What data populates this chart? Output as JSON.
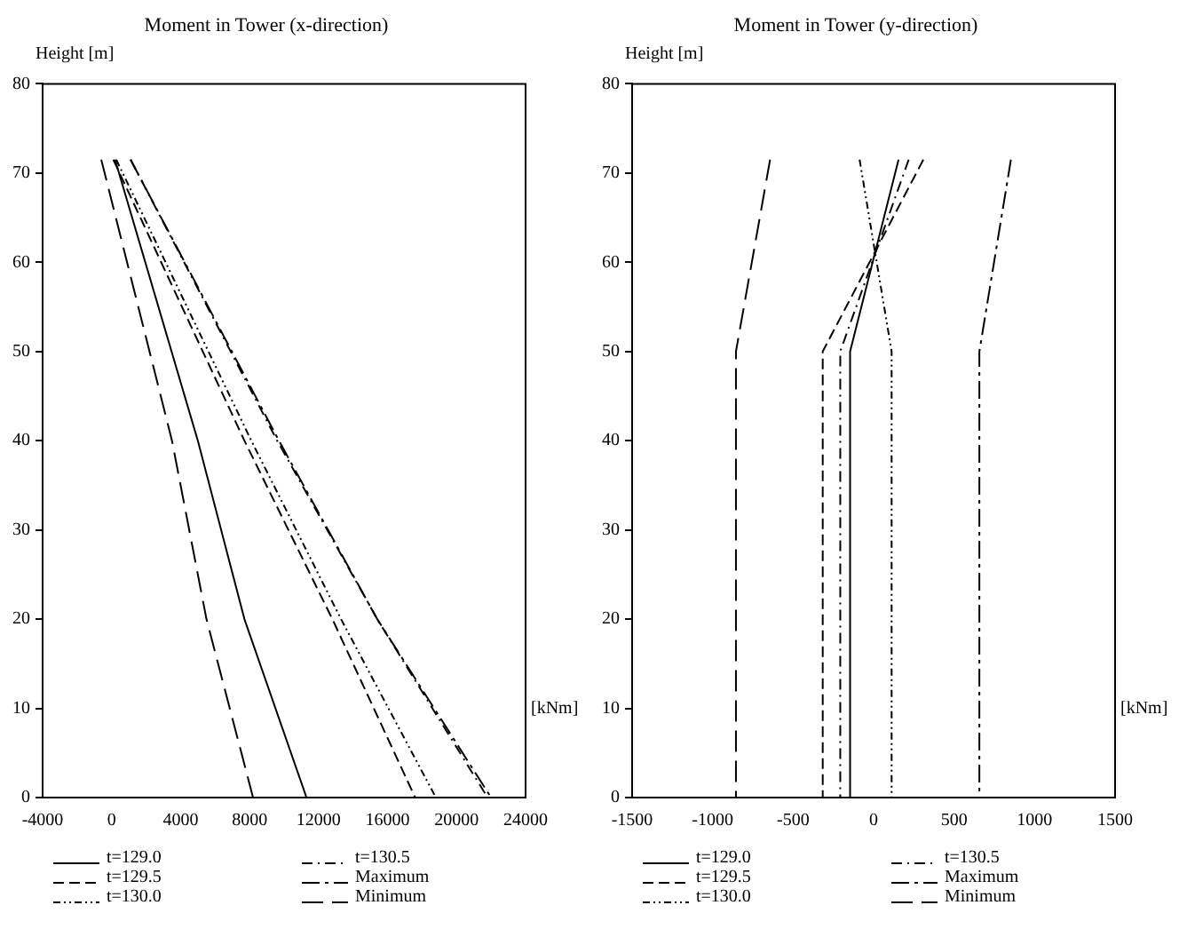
{
  "chart_data": [
    {
      "type": "line",
      "title": "Moment in Tower (x-direction)",
      "xlabel": "[kNm]",
      "ylabel": "Height [m]",
      "xlim": [
        -4000,
        24000
      ],
      "xticks": [
        -4000,
        0,
        4000,
        8000,
        12000,
        16000,
        20000,
        24000
      ],
      "ylim": [
        0,
        80
      ],
      "yticks": [
        0,
        10,
        20,
        30,
        40,
        50,
        60,
        70,
        80
      ],
      "grid": false,
      "legend": "bottom",
      "series": [
        {
          "name": "t=129.0",
          "color": "#000000",
          "line_style": "solid",
          "x": [
            200,
            5000,
            7700,
            11300
          ],
          "values": [
            71.5,
            40,
            20,
            0
          ]
        },
        {
          "name": "t=129.5",
          "color": "#000000",
          "line_style": "dashed",
          "x": [
            100,
            7700,
            12800,
            17600
          ],
          "values": [
            71.5,
            40,
            20,
            0
          ]
        },
        {
          "name": "t=130.0",
          "color": "#000000",
          "line_style": "dotted",
          "x": [
            270,
            8100,
            13300,
            18800
          ],
          "values": [
            71.5,
            40,
            20,
            0
          ]
        },
        {
          "name": "t=130.5",
          "color": "#000000",
          "line_style": "dashed",
          "x": [
            1100,
            9600,
            15400,
            21800
          ],
          "values": [
            71.5,
            40,
            20,
            0
          ]
        },
        {
          "name": "Maximum",
          "color": "#000000",
          "line_style": "dashed",
          "x": [
            1100,
            9700,
            15400,
            22000
          ],
          "values": [
            71.5,
            40,
            20,
            0
          ]
        },
        {
          "name": "Minimum",
          "color": "#000000",
          "line_style": "dashed",
          "x": [
            -600,
            3500,
            5500,
            8200
          ],
          "values": [
            71.5,
            40,
            20,
            0
          ]
        }
      ]
    },
    {
      "type": "line",
      "title": "Moment in Tower (y-direction)",
      "xlabel": "[kNm]",
      "ylabel": "Height [m]",
      "xlim": [
        -1500,
        1500
      ],
      "xticks": [
        -1500,
        -1000,
        -500,
        0,
        500,
        1000,
        1500
      ],
      "ylim": [
        0,
        80
      ],
      "yticks": [
        0,
        10,
        20,
        30,
        40,
        50,
        60,
        70,
        80
      ],
      "grid": false,
      "legend": "bottom",
      "series": [
        {
          "name": "t=129.0",
          "color": "#000000",
          "line_style": "solid",
          "x": [
            155,
            -146,
            -146
          ],
          "values": [
            71.5,
            50,
            0
          ]
        },
        {
          "name": "t=129.5",
          "color": "#000000",
          "line_style": "dashed",
          "x": [
            309,
            -316,
            -316
          ],
          "values": [
            71.5,
            50,
            0
          ]
        },
        {
          "name": "t=130.0",
          "color": "#000000",
          "line_style": "dotted",
          "x": [
            -87,
            112,
            112
          ],
          "values": [
            71.5,
            50,
            0
          ]
        },
        {
          "name": "t=130.5",
          "color": "#000000",
          "line_style": "dashed",
          "x": [
            218,
            -207,
            -207
          ],
          "values": [
            71.5,
            50,
            0
          ]
        },
        {
          "name": "Maximum",
          "color": "#000000",
          "line_style": "dashed",
          "x": [
            853,
            657,
            657
          ],
          "values": [
            71.5,
            50,
            0
          ]
        },
        {
          "name": "Minimum",
          "color": "#000000",
          "line_style": "dashed",
          "x": [
            -643,
            -855,
            -855
          ],
          "values": [
            71.5,
            50,
            0
          ]
        }
      ]
    }
  ]
}
